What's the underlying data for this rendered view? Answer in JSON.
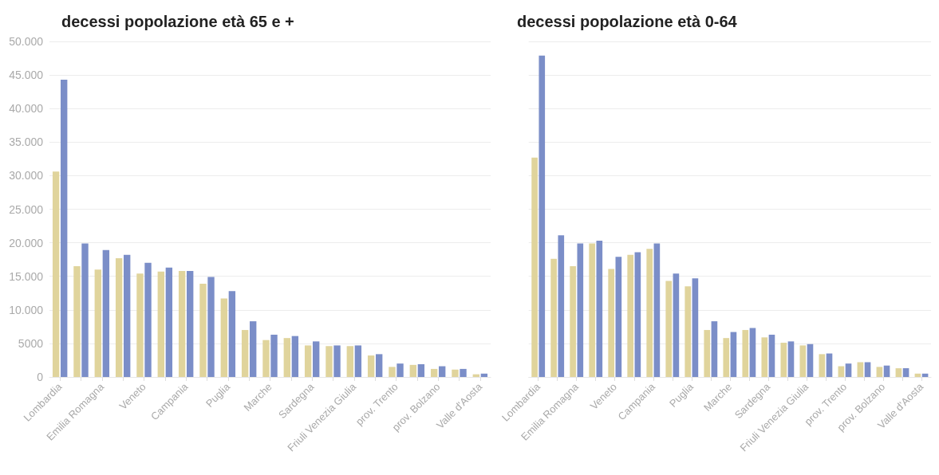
{
  "chart_data": [
    {
      "type": "bar",
      "title": "decessi popolazione età 65 e +",
      "categories": [
        "Lombardia",
        null,
        "Emilia Romagna",
        null,
        "Veneto",
        null,
        "Campania",
        null,
        "Puglia",
        null,
        "Marche",
        null,
        "Sardegna",
        null,
        "Friuli Venezia Giulia",
        null,
        "prov. Trento",
        null,
        "prov. Bolzano",
        null,
        "Valle d'Aosta"
      ],
      "series": [
        {
          "color": "#e0d49c",
          "values": [
            30600,
            16500,
            16000,
            17700,
            15400,
            15700,
            15800,
            13900,
            11700,
            7000,
            5500,
            5800,
            4700,
            4600,
            4600,
            3200,
            1500,
            1800,
            1200,
            1100,
            400
          ]
        },
        {
          "color": "#7b8ec8",
          "values": [
            44300,
            19900,
            18900,
            18200,
            17000,
            16300,
            15800,
            14900,
            12800,
            8300,
            6300,
            6100,
            5300,
            4700,
            4700,
            3400,
            2000,
            1900,
            1600,
            1200,
            500
          ]
        }
      ],
      "ylim": [
        0,
        50000
      ],
      "yticks": [
        0,
        5000,
        {
          "value": 10000,
          "label": "10.000"
        },
        {
          "value": 15000,
          "label": "15.000"
        },
        {
          "value": 20000,
          "label": "20.000"
        },
        {
          "value": 25000,
          "label": "25.000"
        },
        {
          "value": 30000,
          "label": "30.000"
        },
        {
          "value": 35000,
          "label": "35.000"
        },
        {
          "value": 40000,
          "label": "40.000"
        },
        {
          "value": 45000,
          "label": "45.000"
        },
        {
          "value": 50000,
          "label": "50.000"
        }
      ],
      "grid": "y"
    },
    {
      "type": "bar",
      "title": "decessi popolazione età 0-64",
      "categories": [
        "Lombardia",
        null,
        "Emilia Romagna",
        null,
        "Veneto",
        null,
        "Campania",
        null,
        "Puglia",
        null,
        "Marche",
        null,
        "Sardegna",
        null,
        "Friuli Venezia Giulia",
        null,
        "prov. Trento",
        null,
        "prov. Bolzano",
        null,
        "Valle d'Aosta"
      ],
      "series": [
        {
          "color": "#e0d49c",
          "values": [
            32700,
            17600,
            16500,
            19900,
            16100,
            18200,
            19100,
            14300,
            13500,
            7000,
            5800,
            7000,
            5900,
            5100,
            4700,
            3400,
            1600,
            2200,
            1500,
            1300,
            500
          ]
        },
        {
          "color": "#7b8ec8",
          "values": [
            47900,
            21100,
            19900,
            20300,
            17900,
            18600,
            19900,
            15400,
            14700,
            8300,
            6700,
            7300,
            6300,
            5300,
            4900,
            3500,
            2000,
            2200,
            1700,
            1300,
            500
          ]
        }
      ],
      "ylim": [
        0,
        50000
      ],
      "yticks": [
        0,
        5000,
        10000,
        15000,
        20000,
        25000,
        30000,
        35000,
        40000,
        45000,
        50000
      ],
      "grid": "y",
      "tick_labels": "x"
    }
  ]
}
